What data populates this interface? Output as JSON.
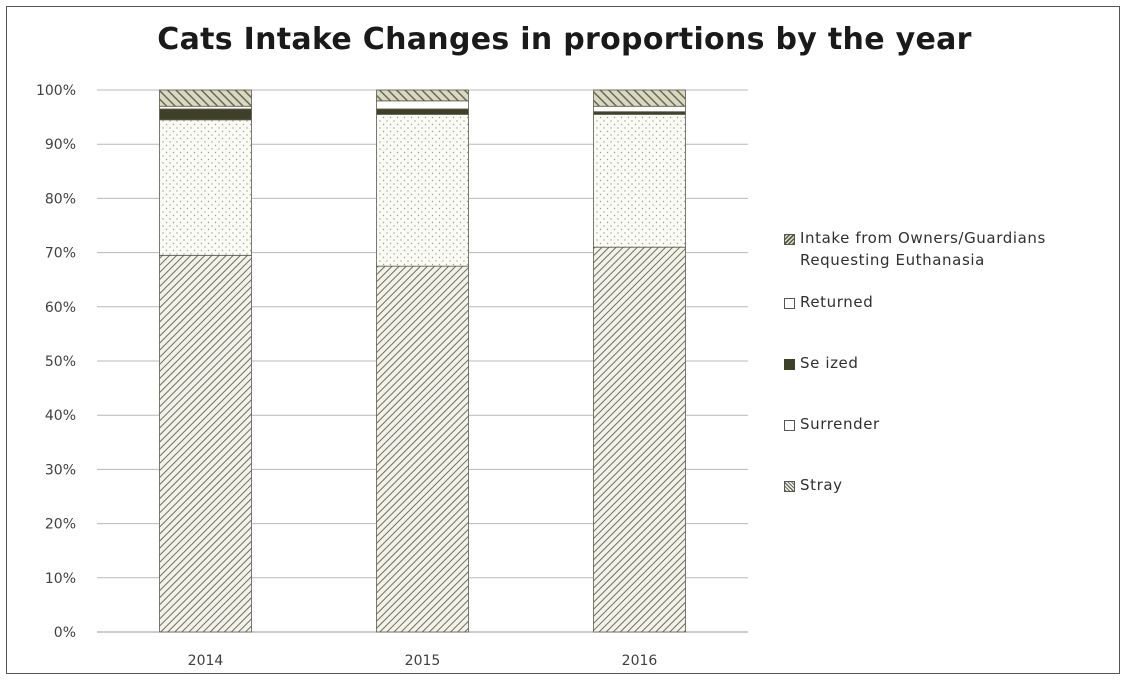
{
  "chart_data": {
    "type": "bar",
    "stacked": true,
    "percent": true,
    "title": "Cats Intake Changes in proportions by the year",
    "xlabel": "",
    "ylabel": "",
    "categories": [
      "2014",
      "2015",
      "2016"
    ],
    "ylim": [
      0,
      100
    ],
    "yticks": [
      "0%",
      "10%",
      "20%",
      "30%",
      "40%",
      "50%",
      "60%",
      "70%",
      "80%",
      "90%",
      "100%"
    ],
    "grid": true,
    "legend_position": "right",
    "series": [
      {
        "name": "Stray",
        "values": [
          69.5,
          67.5,
          71.0
        ],
        "color": "#7a7a6a",
        "pattern": "diagonal-dense"
      },
      {
        "name": "Surrender",
        "values": [
          25.0,
          28.0,
          24.5
        ],
        "color": "#f4f4ee",
        "pattern": "dots"
      },
      {
        "name": "Seized",
        "values": [
          2.0,
          1.0,
          0.5
        ],
        "color": "#3f4028",
        "pattern": "solid"
      },
      {
        "name": "Returned",
        "values": [
          0.5,
          1.5,
          1.0
        ],
        "color": "#ffffff",
        "pattern": "none"
      },
      {
        "name": "Intake from Owners/Guardians Requesting Euthanasia",
        "values": [
          3.0,
          2.0,
          3.0
        ],
        "color": "#8a8a6a",
        "pattern": "diagonal-wide"
      }
    ]
  },
  "legend": {
    "items": [
      {
        "label_line1": "Intake from Owners/Guardians",
        "label_line2": "Requesting Euthanasia",
        "swatch": "diagonal-wide"
      },
      {
        "label_line1": "Returned",
        "label_line2": "",
        "swatch": "none"
      },
      {
        "label_line1": "Se ized",
        "label_line2": "",
        "swatch": "solid"
      },
      {
        "label_line1": "Surrender",
        "label_line2": "",
        "swatch": "none"
      },
      {
        "label_line1": "Stray",
        "label_line2": "",
        "swatch": "diagonal-dense"
      }
    ]
  }
}
